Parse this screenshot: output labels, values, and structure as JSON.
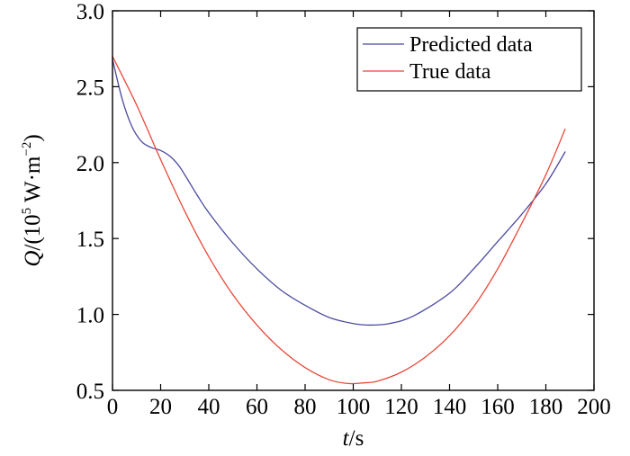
{
  "chart_data": {
    "type": "line",
    "title": "",
    "xlabel": {
      "var": "t",
      "unit": "/s"
    },
    "ylabel": {
      "var": "Q",
      "unit": "/(10",
      "exp": "5",
      "unit2": " W·m",
      "exp2": "−2",
      "close": ")"
    },
    "xlim": [
      0,
      200
    ],
    "ylim": [
      0.5,
      3.0
    ],
    "xticks": [
      "0",
      "20",
      "40",
      "60",
      "80",
      "100",
      "120",
      "140",
      "160",
      "180",
      "200"
    ],
    "yticks": [
      "0.5",
      "1.0",
      "1.5",
      "2.0",
      "2.5",
      "3.0"
    ],
    "grid": false,
    "legend_position": "top-right",
    "series": [
      {
        "name": "Predicted data",
        "color": "#4a4aa0",
        "x": [
          0,
          4,
          8,
          12,
          16,
          20,
          24,
          28,
          35,
          40,
          50,
          60,
          70,
          80,
          90,
          100,
          107,
          115,
          125,
          140,
          150,
          160,
          170,
          180,
          188
        ],
        "y": [
          2.68,
          2.42,
          2.24,
          2.14,
          2.1,
          2.08,
          2.04,
          1.97,
          1.79,
          1.67,
          1.47,
          1.3,
          1.16,
          1.06,
          0.98,
          0.94,
          0.93,
          0.94,
          0.99,
          1.14,
          1.3,
          1.48,
          1.66,
          1.86,
          2.07
        ]
      },
      {
        "name": "True data",
        "color": "#e8483a",
        "x": [
          0,
          10,
          20,
          30,
          40,
          50,
          60,
          70,
          80,
          90,
          98,
          105,
          110,
          120,
          130,
          140,
          150,
          160,
          170,
          180,
          188
        ],
        "y": [
          2.7,
          2.38,
          2.02,
          1.68,
          1.38,
          1.13,
          0.93,
          0.77,
          0.65,
          0.57,
          0.545,
          0.55,
          0.56,
          0.62,
          0.72,
          0.86,
          1.05,
          1.3,
          1.6,
          1.92,
          2.22
        ]
      }
    ]
  }
}
